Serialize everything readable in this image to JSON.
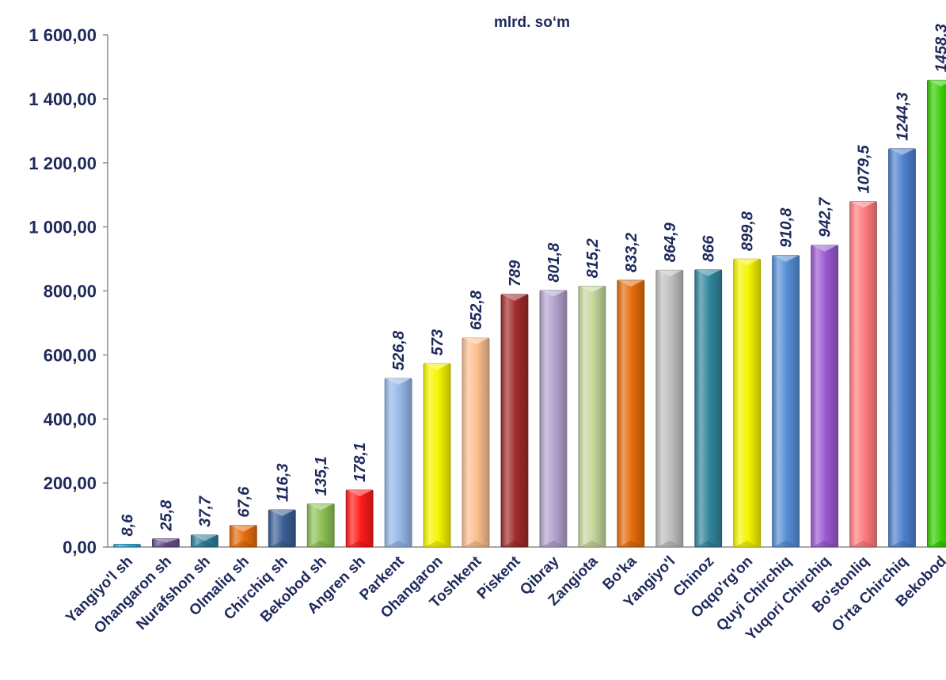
{
  "chart_data": {
    "type": "bar",
    "title": "mlrd. so‘m",
    "xlabel": "",
    "ylabel": "",
    "ylim": [
      0,
      1600
    ],
    "y_ticks": [
      "0,00",
      "200,00",
      "400,00",
      "600,00",
      "800,00",
      "1 000,00",
      "1 200,00",
      "1 400,00",
      "1 600,00"
    ],
    "grid": false,
    "legend": "none",
    "categories": [
      "Yangiyo'l sh",
      "Ohangaron sh",
      "Nurafshon sh",
      "Olmaliq sh",
      "Chirchiq sh",
      "Bekobod sh",
      "Angren sh",
      "Parkent",
      "Ohangaron",
      "Toshkent",
      "Piskent",
      "Qibray",
      "Zangiota",
      "Bo'ka",
      "Yangiyo'l",
      "Chinoz",
      "Oqqo'rg'on",
      "Quyi Chirchiq",
      "Yuqori Chirchiq",
      "Bo'stonliq",
      "O'rta Chirchiq",
      "Bekobod"
    ],
    "values": [
      8.6,
      25.8,
      37.7,
      67.6,
      116.3,
      135.1,
      178.1,
      526.8,
      573,
      652.8,
      789,
      801.8,
      815.2,
      833.2,
      864.9,
      866,
      899.8,
      910.8,
      942.7,
      1079.5,
      1244.3,
      1458.3
    ],
    "data_labels": [
      "8,6",
      "25,8",
      "37,7",
      "67,6",
      "116,3",
      "135,1",
      "178,1",
      "526,8",
      "573",
      "652,8",
      "789",
      "801,8",
      "815,2",
      "833,2",
      "864,9",
      "866",
      "899,8",
      "910,8",
      "942,7",
      "1079,5",
      "1244,3",
      "1458,3"
    ],
    "colors": [
      "#29a3d6",
      "#6b4f8c",
      "#2f7f97",
      "#e46c0a",
      "#3b5f96",
      "#8cc152",
      "#ff1a1a",
      "#95b8e6",
      "#f5f500",
      "#fcbf8e",
      "#a02b2b",
      "#b2a2cc",
      "#c4d79b",
      "#e46c0a",
      "#bfbfbf",
      "#31859c",
      "#f5f500",
      "#558ed5",
      "#9b59d0",
      "#ff7c80",
      "#4f81d0",
      "#33cc00"
    ]
  }
}
